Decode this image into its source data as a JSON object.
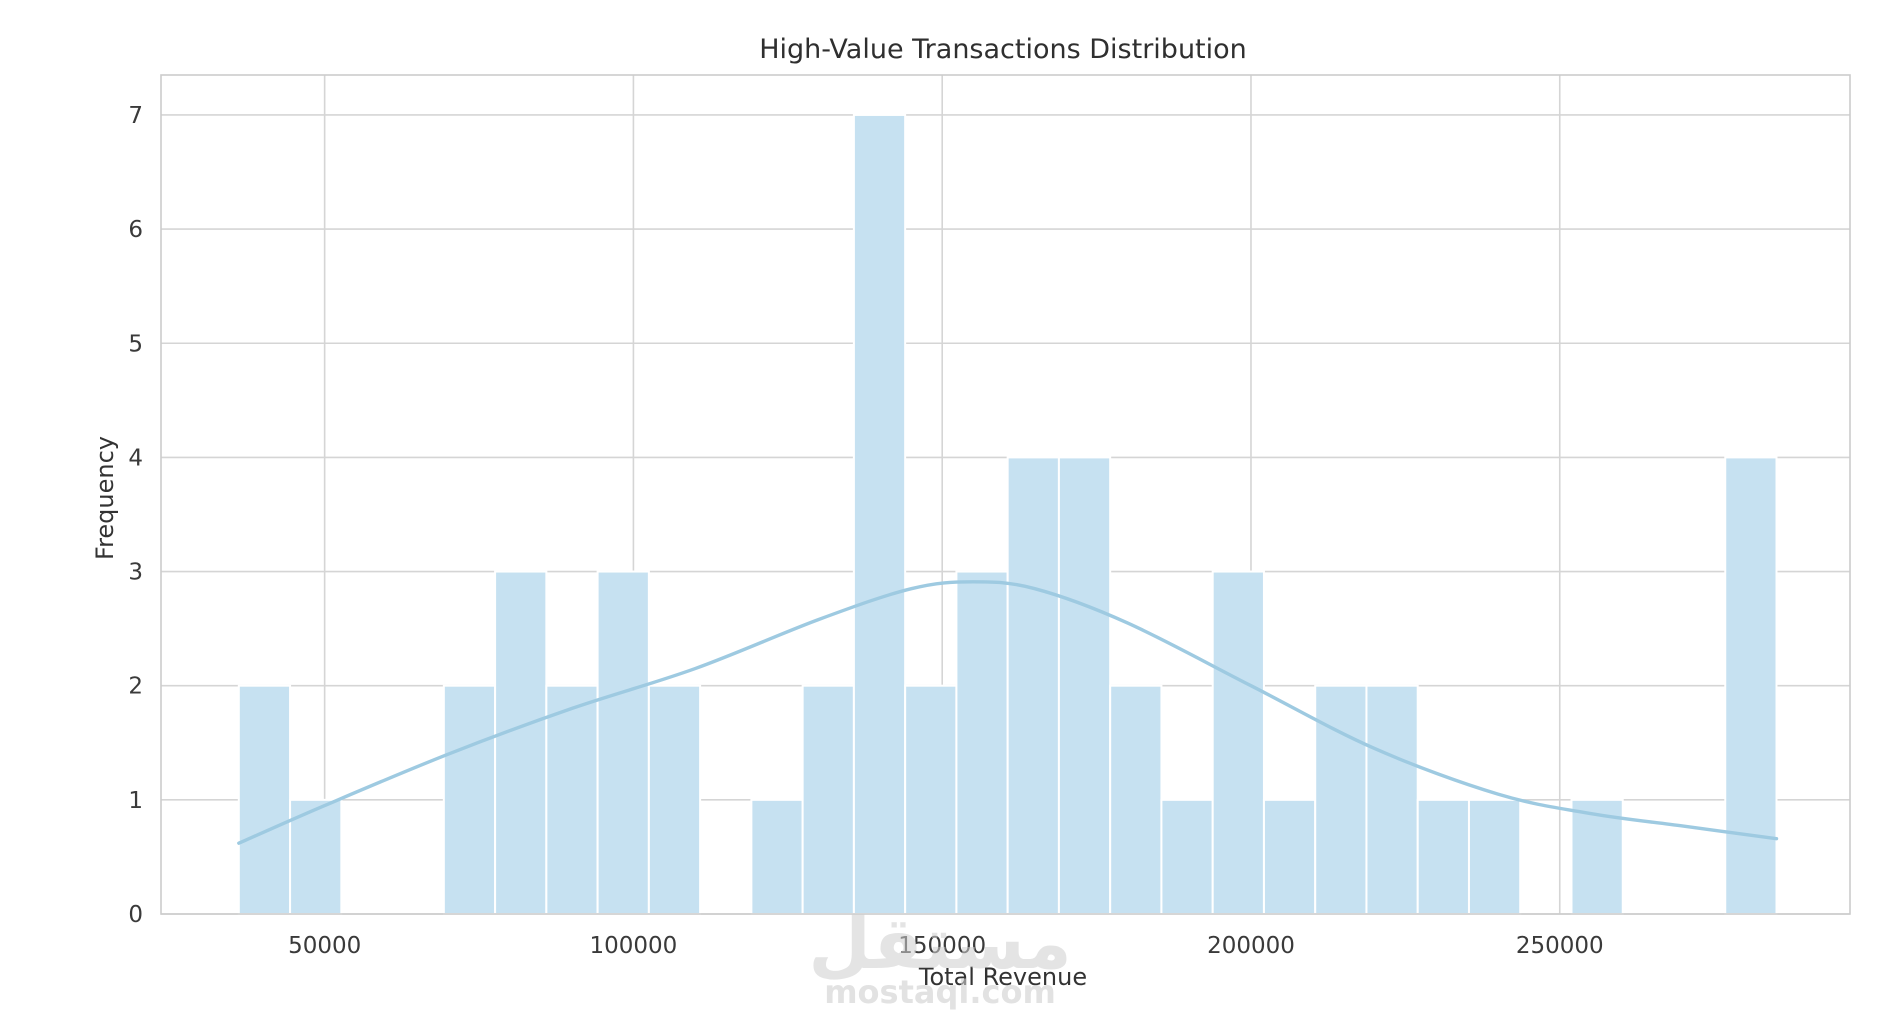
{
  "chart_data": {
    "type": "bar",
    "subtype": "histogram",
    "title": "High-Value Transactions Distribution",
    "xlabel": "Total Revenue",
    "ylabel": "Frequency",
    "xlim": [
      23500,
      297000
    ],
    "ylim": [
      0,
      7.35
    ],
    "xticks": [
      50000,
      100000,
      150000,
      200000,
      250000
    ],
    "yticks": [
      0,
      1,
      2,
      3,
      4,
      5,
      6,
      7
    ],
    "grid": true,
    "bar_color": "#c6e1f1",
    "kde_color": "#9ecae1",
    "bins": [
      {
        "x0": 36100,
        "x1": 44400,
        "count": 2
      },
      {
        "x0": 44400,
        "x1": 52700,
        "count": 1
      },
      {
        "x0": 52700,
        "x1": 61000,
        "count": 0
      },
      {
        "x0": 61000,
        "x1": 69300,
        "count": 0
      },
      {
        "x0": 69300,
        "x1": 77600,
        "count": 2
      },
      {
        "x0": 77600,
        "x1": 85900,
        "count": 3
      },
      {
        "x0": 85900,
        "x1": 94200,
        "count": 2
      },
      {
        "x0": 94200,
        "x1": 102500,
        "count": 3
      },
      {
        "x0": 102500,
        "x1": 110800,
        "count": 2
      },
      {
        "x0": 110800,
        "x1": 119100,
        "count": 0
      },
      {
        "x0": 119100,
        "x1": 127400,
        "count": 1
      },
      {
        "x0": 127400,
        "x1": 135700,
        "count": 2
      },
      {
        "x0": 135700,
        "x1": 144000,
        "count": 7
      },
      {
        "x0": 144000,
        "x1": 152300,
        "count": 2
      },
      {
        "x0": 152300,
        "x1": 160600,
        "count": 3
      },
      {
        "x0": 160600,
        "x1": 168900,
        "count": 4
      },
      {
        "x0": 168900,
        "x1": 177200,
        "count": 4
      },
      {
        "x0": 177200,
        "x1": 185500,
        "count": 2
      },
      {
        "x0": 185500,
        "x1": 193800,
        "count": 1
      },
      {
        "x0": 193800,
        "x1": 202100,
        "count": 3
      },
      {
        "x0": 202100,
        "x1": 210400,
        "count": 1
      },
      {
        "x0": 210400,
        "x1": 218700,
        "count": 2
      },
      {
        "x0": 218700,
        "x1": 227000,
        "count": 2
      },
      {
        "x0": 227000,
        "x1": 235300,
        "count": 1
      },
      {
        "x0": 235300,
        "x1": 243600,
        "count": 1
      },
      {
        "x0": 243600,
        "x1": 251900,
        "count": 0
      },
      {
        "x0": 251900,
        "x1": 260200,
        "count": 1
      },
      {
        "x0": 260200,
        "x1": 268500,
        "count": 0
      },
      {
        "x0": 268500,
        "x1": 276800,
        "count": 0
      },
      {
        "x0": 276800,
        "x1": 285100,
        "count": 4
      }
    ],
    "kde": {
      "x": [
        36100,
        50000,
        70000,
        90000,
        110000,
        130000,
        145000,
        155000,
        165000,
        180000,
        200000,
        220000,
        240000,
        255000,
        270000,
        285100
      ],
      "y": [
        0.62,
        0.95,
        1.4,
        1.8,
        2.15,
        2.58,
        2.85,
        2.91,
        2.85,
        2.55,
        2.0,
        1.45,
        1.05,
        0.88,
        0.77,
        0.66
      ]
    }
  },
  "watermark": {
    "arabic_text": "مستقل",
    "latin_text": "mostaql.com"
  }
}
